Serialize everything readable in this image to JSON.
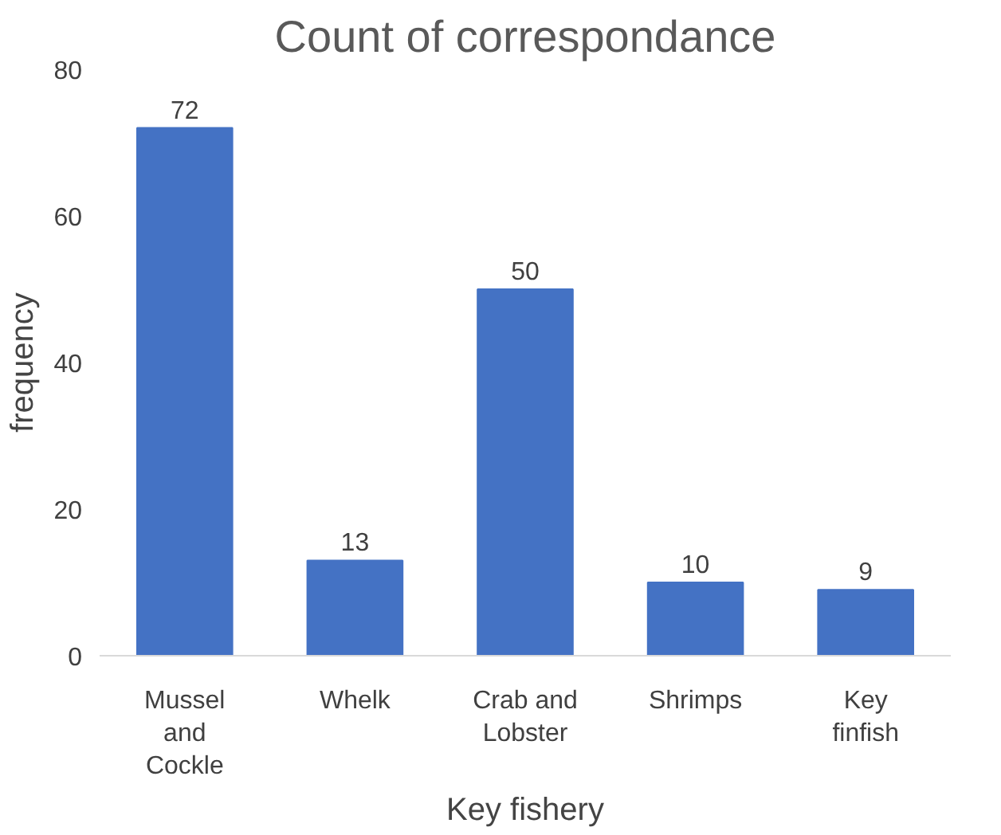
{
  "chart_data": {
    "type": "bar",
    "title": "Count of correspondance",
    "xlabel": "Key fishery",
    "ylabel": "frequency",
    "categories": [
      "Mussel and Cockle",
      "Whelk",
      "Crab and Lobster",
      "Shrimps",
      "Key finfish"
    ],
    "values": [
      72,
      13,
      50,
      10,
      9
    ],
    "color": "#4472c4",
    "ylim": [
      0,
      80
    ],
    "yticks": [
      0,
      20,
      40,
      60,
      80
    ],
    "grid": false,
    "data_labels": true
  }
}
